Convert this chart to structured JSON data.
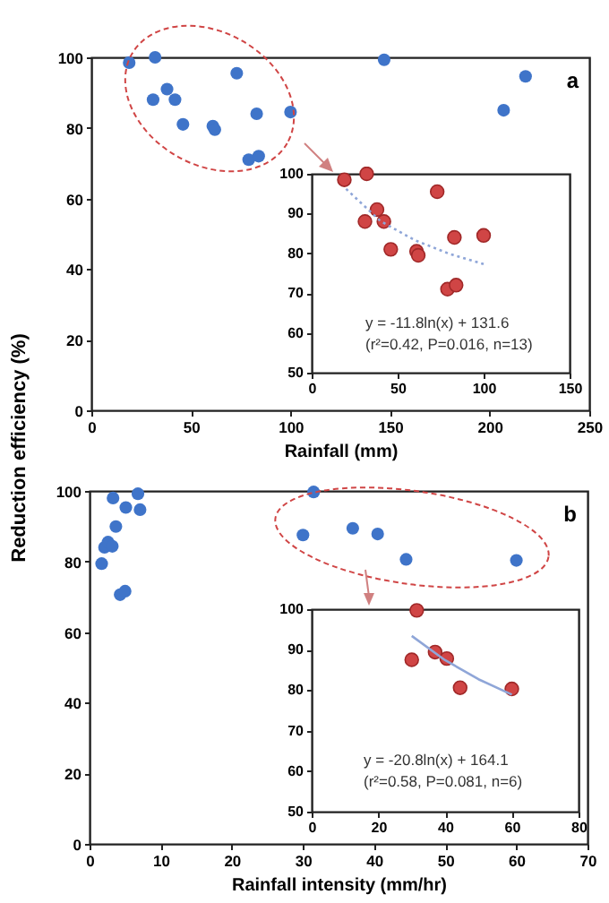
{
  "chart_data": [
    {
      "type": "scatter",
      "title": "a",
      "xlabel": "Rainfall (mm)",
      "ylabel": "Reduction efficiency (%)",
      "xlim": [
        0,
        250
      ],
      "ylim": [
        0,
        100
      ],
      "xticks": [
        0,
        50,
        100,
        150,
        200,
        250
      ],
      "yticks": [
        0,
        20,
        40,
        60,
        80,
        100
      ],
      "grid": false,
      "marker": "circle",
      "series": [
        {
          "color": "#3f74c9",
          "x": [
            19,
            32,
            31,
            38,
            42,
            46,
            61,
            62,
            73,
            83,
            100,
            79,
            84,
            147,
            207,
            218
          ],
          "values": [
            98.5,
            100,
            88,
            91,
            88,
            81,
            80.5,
            79.5,
            95.5,
            84,
            84.5,
            71,
            72,
            99.3,
            85,
            94.6
          ]
        }
      ]
    },
    {
      "type": "scatter",
      "xlim": [
        0,
        150
      ],
      "ylim": [
        50,
        100
      ],
      "xticks": [
        0,
        50,
        100,
        150
      ],
      "yticks": [
        50,
        60,
        70,
        80,
        90,
        100
      ],
      "grid": false,
      "annotations": [
        "y = -11.8ln(x) + 131.6",
        "(r²=0.42, P=0.016, n=13)"
      ],
      "series": [
        {
          "color": "#d04545",
          "marker": "circle",
          "x": [
            19,
            32,
            31,
            38,
            42,
            46,
            61,
            62,
            73,
            83,
            100,
            79,
            84
          ],
          "values": [
            98.5,
            100,
            88,
            91,
            88,
            81,
            80.5,
            79.5,
            95.5,
            84,
            84.5,
            71,
            72
          ]
        },
        {
          "type": "line",
          "color": "#8fa6d8",
          "line_style": "dotted",
          "x": [
            20,
            40,
            60,
            80,
            100
          ],
          "values": [
            96.2,
            88.1,
            83.3,
            79.9,
            77.3
          ]
        }
      ]
    },
    {
      "type": "scatter",
      "title": "b",
      "xlabel": "Rainfall intensity (mm/hr)",
      "xlim": [
        0,
        70
      ],
      "ylim": [
        0,
        100
      ],
      "xticks": [
        0,
        10,
        20,
        30,
        40,
        50,
        60,
        70
      ],
      "yticks": [
        0,
        20,
        40,
        60,
        80,
        100
      ],
      "grid": false,
      "marker": "circle",
      "series": [
        {
          "color": "#3f74c9",
          "x": [
            1.7,
            2.1,
            2.6,
            3.2,
            3.3,
            3.7,
            4.3,
            5.0,
            5.1,
            6.8,
            7.1,
            30,
            31.5,
            37,
            40.5,
            44.5,
            60
          ],
          "values": [
            79.4,
            84,
            85.5,
            84.3,
            98,
            89.9,
            70.6,
            71.6,
            95.3,
            99.2,
            94.7,
            87.5,
            99.7,
            89.4,
            87.8,
            80.6,
            80.3
          ]
        }
      ]
    },
    {
      "type": "scatter",
      "xlim": [
        0,
        80
      ],
      "ylim": [
        50,
        100
      ],
      "xticks": [
        0,
        20,
        40,
        60,
        80
      ],
      "yticks": [
        50,
        60,
        70,
        80,
        90,
        100
      ],
      "grid": false,
      "annotations": [
        "y = -20.8ln(x) + 164.1",
        "(r²=0.58, P=0.081, n=6)"
      ],
      "series": [
        {
          "color": "#d04545",
          "marker": "circle",
          "x": [
            30,
            31.5,
            37,
            40.5,
            44.5,
            60
          ],
          "values": [
            87.5,
            99.7,
            89.4,
            87.8,
            80.6,
            80.3
          ]
        },
        {
          "type": "line",
          "color": "#8fa6d8",
          "line_style": "solid",
          "x": [
            30,
            40,
            50,
            60
          ],
          "values": [
            93.4,
            87.4,
            82.7,
            78.9
          ]
        }
      ]
    }
  ]
}
